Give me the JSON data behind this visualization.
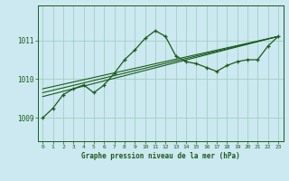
{
  "background_color": "#cce8f0",
  "grid_color": "#99ccbb",
  "line_color": "#1a5c1a",
  "title": "Graphe pression niveau de la mer (hPa)",
  "xlim": [
    -0.5,
    23.5
  ],
  "ylim": [
    1008.4,
    1011.9
  ],
  "yticks": [
    1009,
    1010,
    1011
  ],
  "xticks": [
    0,
    1,
    2,
    3,
    4,
    5,
    6,
    7,
    8,
    9,
    10,
    11,
    12,
    13,
    14,
    15,
    16,
    17,
    18,
    19,
    20,
    21,
    22,
    23
  ],
  "series1_x": [
    0,
    1,
    2,
    3,
    4,
    5,
    6,
    7,
    8,
    9,
    10,
    11,
    12,
    13,
    14,
    15,
    16,
    17,
    18,
    19,
    20,
    21,
    22,
    23
  ],
  "series1_y": [
    1009.0,
    1009.25,
    1009.6,
    1009.75,
    1009.85,
    1009.65,
    1009.85,
    1010.15,
    1010.5,
    1010.75,
    1011.05,
    1011.25,
    1011.1,
    1010.6,
    1010.45,
    1010.4,
    1010.3,
    1010.2,
    1010.35,
    1010.45,
    1010.5,
    1010.5,
    1010.85,
    1011.1
  ],
  "series2_x": [
    0,
    23
  ],
  "series2_y": [
    1009.75,
    1011.1
  ],
  "series3_x": [
    0,
    23
  ],
  "series3_y": [
    1009.65,
    1011.1
  ],
  "series4_x": [
    0,
    23
  ],
  "series4_y": [
    1009.55,
    1011.1
  ],
  "marker": "+"
}
